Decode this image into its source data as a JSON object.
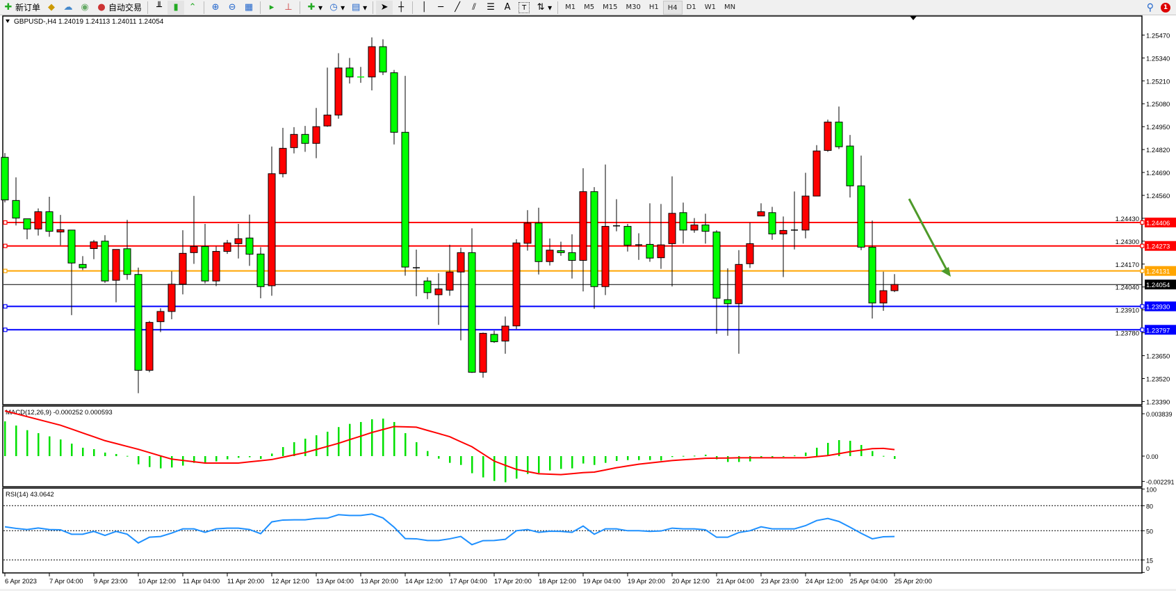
{
  "toolbar": {
    "items": [
      {
        "label": "新订单",
        "icon": "new-order-icon"
      },
      {
        "label": "",
        "icon": "market-watch-icon"
      },
      {
        "label": "",
        "icon": "data-window-icon"
      },
      {
        "label": "",
        "icon": "signals-icon"
      },
      {
        "label": "自动交易",
        "icon": "autotrading-icon"
      }
    ],
    "chart_tools": [
      "bar-chart-icon",
      "candlestick-icon",
      "line-chart-icon",
      "zoom-in-icon",
      "zoom-out-icon",
      "tile-windows-icon",
      "autoscroll-icon",
      "chart-shift-icon",
      "indicators-icon",
      "periods-icon",
      "templates-icon",
      "cursor-icon",
      "crosshair-icon",
      "vertical-line-icon",
      "horizontal-line-icon",
      "trendline-icon",
      "equidistant-channel-icon",
      "fibonacci-icon",
      "text-icon",
      "text-label-icon",
      "arrows-icon"
    ],
    "text_tool_label": "A",
    "timeframes": [
      "M1",
      "M5",
      "M15",
      "M30",
      "H1",
      "H4",
      "D1",
      "W1",
      "MN"
    ],
    "active_timeframe": "H4",
    "notification_count": "1"
  },
  "chart": {
    "header": "GBPUSD-,H4  1.24019 1.24113 1.24011 1.24054",
    "colors": {
      "bull": "#ff0000",
      "bear": "#00ff00",
      "outline": "#000000"
    },
    "price_ticks": [
      "1.25470",
      "1.25340",
      "1.25210",
      "1.25080",
      "1.24950",
      "1.24820",
      "1.24690",
      "1.24560",
      "1.24430",
      "1.24300",
      "1.24170",
      "1.24040",
      "1.23910",
      "1.23780",
      "1.23650",
      "1.23520",
      "1.23390"
    ],
    "levels": [
      {
        "price": "1.24406",
        "color": "#ff0000"
      },
      {
        "price": "1.24273",
        "color": "#ff0000"
      },
      {
        "price": "1.24131",
        "color": "#ffa500"
      },
      {
        "price": "1.23930",
        "color": "#0000ff"
      },
      {
        "price": "1.23797",
        "color": "#0000ff"
      }
    ],
    "current_price": "1.24054",
    "arrow_color": "#4e9a2a",
    "time_labels": [
      "6 Apr 2023",
      "7 Apr 04:00",
      "9 Apr 23:00",
      "10 Apr 12:00",
      "11 Apr 04:00",
      "11 Apr 20:00",
      "12 Apr 12:00",
      "13 Apr 04:00",
      "13 Apr 20:00",
      "14 Apr 12:00",
      "17 Apr 04:00",
      "17 Apr 20:00",
      "18 Apr 12:00",
      "19 Apr 04:00",
      "19 Apr 20:00",
      "20 Apr 12:00",
      "21 Apr 04:00",
      "23 Apr 23:00",
      "24 Apr 12:00",
      "25 Apr 04:00",
      "25 Apr 20:00"
    ]
  },
  "chart_data": [
    {
      "type": "candlestick",
      "title": "GBPUSD-,H4",
      "ylim": [
        1.2339,
        1.2547
      ],
      "candles_ohlc": [
        [
          1.24776,
          1.248,
          1.2452,
          1.24534
        ],
        [
          1.24531,
          1.24662,
          1.24389,
          1.24431
        ],
        [
          1.24427,
          1.24427,
          1.24311,
          1.24369
        ],
        [
          1.24369,
          1.24486,
          1.24332,
          1.24467
        ],
        [
          1.24467,
          1.24552,
          1.24325,
          1.24356
        ],
        [
          1.24352,
          1.24449,
          1.24277,
          1.24365
        ],
        [
          1.24363,
          1.24363,
          1.2388,
          1.24176
        ],
        [
          1.24168,
          1.24215,
          1.24136,
          1.24149
        ],
        [
          1.24258,
          1.24307,
          1.24198,
          1.24296
        ],
        [
          1.243,
          1.24334,
          1.24063,
          1.24074
        ],
        [
          1.24078,
          1.24253,
          1.23953,
          1.24253
        ],
        [
          1.24257,
          1.24421,
          1.24081,
          1.24111
        ],
        [
          1.24111,
          1.2415,
          1.23437,
          1.23567
        ],
        [
          1.23567,
          1.23847,
          1.23556,
          1.23839
        ],
        [
          1.23843,
          1.23919,
          1.23784,
          1.23901
        ],
        [
          1.23901,
          1.24129,
          1.23857,
          1.24056
        ],
        [
          1.24056,
          1.24362,
          1.23998,
          1.24231
        ],
        [
          1.24235,
          1.24557,
          1.24171,
          1.2427
        ],
        [
          1.2427,
          1.24398,
          1.2406,
          1.24074
        ],
        [
          1.24074,
          1.2427,
          1.24045,
          1.24242
        ],
        [
          1.24242,
          1.24307,
          1.24228,
          1.2429
        ],
        [
          1.24286,
          1.24398,
          1.24202,
          1.24314
        ],
        [
          1.24318,
          1.24451,
          1.2416,
          1.24226
        ],
        [
          1.24227,
          1.24266,
          1.23976,
          1.24042
        ],
        [
          1.24047,
          1.24837,
          1.2399,
          1.24683
        ],
        [
          1.24683,
          1.24943,
          1.24662,
          1.24827
        ],
        [
          1.24831,
          1.24947,
          1.24798,
          1.24906
        ],
        [
          1.24906,
          1.24954,
          1.24807,
          1.24855
        ],
        [
          1.24855,
          1.25056,
          1.24771,
          1.2495
        ],
        [
          1.24954,
          1.25285,
          1.24949,
          1.25016
        ],
        [
          1.25016,
          1.25367,
          1.24995,
          1.25283
        ],
        [
          1.25283,
          1.2534,
          1.25195,
          1.25232
        ],
        [
          1.25232,
          1.25289,
          1.25199,
          1.25232
        ],
        [
          1.25232,
          1.25457,
          1.25156,
          1.25404
        ],
        [
          1.25404,
          1.25446,
          1.25243,
          1.2526
        ],
        [
          1.25256,
          1.25272,
          1.24849,
          1.24918
        ],
        [
          1.24918,
          1.25238,
          1.24104,
          1.24153
        ],
        [
          1.24149,
          1.24252,
          1.23987,
          1.24149
        ],
        [
          1.24074,
          1.24095,
          1.23971,
          1.24008
        ],
        [
          1.23996,
          1.24118,
          1.23825,
          1.24029
        ],
        [
          1.24022,
          1.24279,
          1.2399,
          1.24125
        ],
        [
          1.24125,
          1.24263,
          1.23737,
          1.24235
        ],
        [
          1.24235,
          1.24373,
          1.23552,
          1.23556
        ],
        [
          1.23556,
          1.23781,
          1.23525,
          1.23777
        ],
        [
          1.23771,
          1.23792,
          1.23723,
          1.23729
        ],
        [
          1.23733,
          1.23872,
          1.23661,
          1.23818
        ],
        [
          1.23819,
          1.24311,
          1.23801,
          1.2429
        ],
        [
          1.24288,
          1.24476,
          1.24246,
          1.24403
        ],
        [
          1.24403,
          1.2449,
          1.24111,
          1.24184
        ],
        [
          1.24184,
          1.24315,
          1.24162,
          1.24249
        ],
        [
          1.24246,
          1.24297,
          1.24217,
          1.24235
        ],
        [
          1.24235,
          1.24339,
          1.24088,
          1.24191
        ],
        [
          1.24191,
          1.24714,
          1.24015,
          1.24581
        ],
        [
          1.24581,
          1.24607,
          1.23916,
          1.24042
        ],
        [
          1.24042,
          1.24735,
          1.23994,
          1.24384
        ],
        [
          1.24387,
          1.24538,
          1.24356,
          1.24387
        ],
        [
          1.24384,
          1.24398,
          1.24241,
          1.24277
        ],
        [
          1.24279,
          1.24345,
          1.24194,
          1.24279
        ],
        [
          1.24282,
          1.24515,
          1.24183,
          1.24204
        ],
        [
          1.24206,
          1.24511,
          1.24143,
          1.24279
        ],
        [
          1.24286,
          1.24668,
          1.24043,
          1.24458
        ],
        [
          1.24462,
          1.24519,
          1.24286,
          1.24363
        ],
        [
          1.24363,
          1.24431,
          1.24348,
          1.24392
        ],
        [
          1.24392,
          1.24456,
          1.24286,
          1.24356
        ],
        [
          1.24352,
          1.24362,
          1.23774,
          1.23976
        ],
        [
          1.23968,
          1.24146,
          1.23763,
          1.23945
        ],
        [
          1.23945,
          1.24249,
          1.23661,
          1.24168
        ],
        [
          1.24172,
          1.24405,
          1.24148,
          1.24286
        ],
        [
          1.24443,
          1.24515,
          1.24443,
          1.24467
        ],
        [
          1.24462,
          1.24495,
          1.24308,
          1.24341
        ],
        [
          1.24341,
          1.2444,
          1.24096,
          1.24361
        ],
        [
          1.24363,
          1.24582,
          1.24253,
          1.24363
        ],
        [
          1.24363,
          1.24688,
          1.24316,
          1.24556
        ],
        [
          1.24556,
          1.24845,
          1.24556,
          1.24812
        ],
        [
          1.24815,
          1.2499,
          1.24807,
          1.24976
        ],
        [
          1.24976,
          1.25064,
          1.24823,
          1.24836
        ],
        [
          1.2484,
          1.24903,
          1.24548,
          1.24614
        ],
        [
          1.24614,
          1.24786,
          1.24249,
          1.24266
        ],
        [
          1.24266,
          1.24417,
          1.23861,
          1.23949
        ],
        [
          1.23949,
          1.24127,
          1.23905,
          1.24019
        ],
        [
          1.24019,
          1.24113,
          1.24011,
          1.24054
        ]
      ]
    },
    {
      "type": "bar+line",
      "label": "MACD(12,26,9) -0.000252 0.000593",
      "ylim": [
        -0.002291,
        0.003839
      ],
      "tick_labels": [
        "0.003839",
        "0.00",
        "-0.002291"
      ],
      "histogram": [
        0.00315,
        0.00277,
        0.00235,
        0.00208,
        0.00179,
        0.00151,
        0.00113,
        0.00076,
        0.00063,
        0.00032,
        0.00019,
        2e-05,
        -0.00074,
        -0.00099,
        -0.00111,
        -0.00103,
        -0.00086,
        -0.00061,
        -0.00061,
        -0.00048,
        -0.00029,
        -0.00015,
        -0.0001,
        -0.00025,
        0.00023,
        0.00082,
        0.00126,
        0.00158,
        0.00189,
        0.00221,
        0.00263,
        0.00292,
        0.00309,
        0.00334,
        0.0034,
        0.00309,
        0.00208,
        0.00126,
        0.00046,
        -0.00023,
        -0.00061,
        -0.0008,
        -0.00155,
        -0.00193,
        -0.00225,
        -0.00237,
        -0.00204,
        -0.00162,
        -0.00153,
        -0.0013,
        -0.00116,
        -0.00111,
        -0.00067,
        -0.0008,
        -0.00061,
        -0.00044,
        -0.00036,
        -0.00036,
        -0.00036,
        -0.0004,
        -8e-05,
        2e-05,
        4e-05,
        0.00013,
        -0.00029,
        -0.00053,
        -0.00053,
        -0.00048,
        -0.00015,
        -0.00015,
        -4e-05,
        6e-05,
        0.00032,
        0.00076,
        0.0012,
        0.00145,
        0.00139,
        0.00101,
        0.00046,
        2e-05,
        -0.000252
      ],
      "signal": [
        0.0041,
        0.00384,
        0.00358,
        0.00332,
        0.00306,
        0.0028,
        0.00245,
        0.0021,
        0.00175,
        0.0014,
        0.00114,
        0.00088,
        0.00062,
        0.00032,
        2e-05,
        -0.00027,
        -0.00039,
        -0.00051,
        -0.00063,
        -0.00063,
        -0.00063,
        -0.00063,
        -0.00052,
        -0.00042,
        -0.00031,
        -0.0001,
        0.00011,
        0.00032,
        0.0006,
        0.00088,
        0.00116,
        0.00149,
        0.00181,
        0.00214,
        0.00241,
        0.00268,
        0.00265,
        0.00262,
        0.00233,
        0.00205,
        0.00176,
        0.0013,
        0.00085,
        0.0002,
        -0.00045,
        -0.00083,
        -0.0012,
        -0.0014,
        -0.0016,
        -0.00164,
        -0.00168,
        -0.00159,
        -0.0015,
        -0.00145,
        -0.00125,
        -0.00105,
        -0.00089,
        -0.00073,
        -0.00062,
        -0.00051,
        -0.0004,
        -0.00033,
        -0.00027,
        -0.0002,
        -0.00018,
        -0.00017,
        -0.00015,
        -0.00015,
        -0.00015,
        -0.00015,
        -0.00015,
        -0.00015,
        -0.00015,
        -5e-05,
        5e-05,
        0.00022,
        0.0004,
        0.00054,
        0.00068,
        0.0007,
        0.000593
      ],
      "colors": {
        "histogram": "#00e000",
        "signal": "#ff0000"
      }
    },
    {
      "type": "line",
      "label": "RSI(14) 43.0642",
      "ylim": [
        0,
        100
      ],
      "tick_labels": [
        "100",
        "80",
        "50",
        "15",
        "0"
      ],
      "levels": [
        80,
        50,
        15
      ],
      "values": [
        54.7,
        52.8,
        51.4,
        53.3,
        51.4,
        51.1,
        45.8,
        45.8,
        49.2,
        44.4,
        49.2,
        45.8,
        35.3,
        42.2,
        43.1,
        47.2,
        52.2,
        52.2,
        48.1,
        52.2,
        53.1,
        53.1,
        51.4,
        46.4,
        60.6,
        62.8,
        63.1,
        63.1,
        64.7,
        65.0,
        69.2,
        68.3,
        68.3,
        70.0,
        65.3,
        54.2,
        40.6,
        40.3,
        38.3,
        38.3,
        40.3,
        43.1,
        33.3,
        38.1,
        38.3,
        39.7,
        50.0,
        51.4,
        48.1,
        49.4,
        49.2,
        48.1,
        55.6,
        45.8,
        52.2,
        52.2,
        50,
        50,
        49.2,
        49.7,
        53.1,
        52.2,
        52.2,
        51.1,
        42.2,
        42.2,
        47.8,
        50,
        54.7,
        52.2,
        52.2,
        52.2,
        56.1,
        62.2,
        64.7,
        61.1,
        54.2,
        46.9,
        40.3,
        42.8,
        43.0642
      ],
      "color": "#1e90ff"
    }
  ]
}
